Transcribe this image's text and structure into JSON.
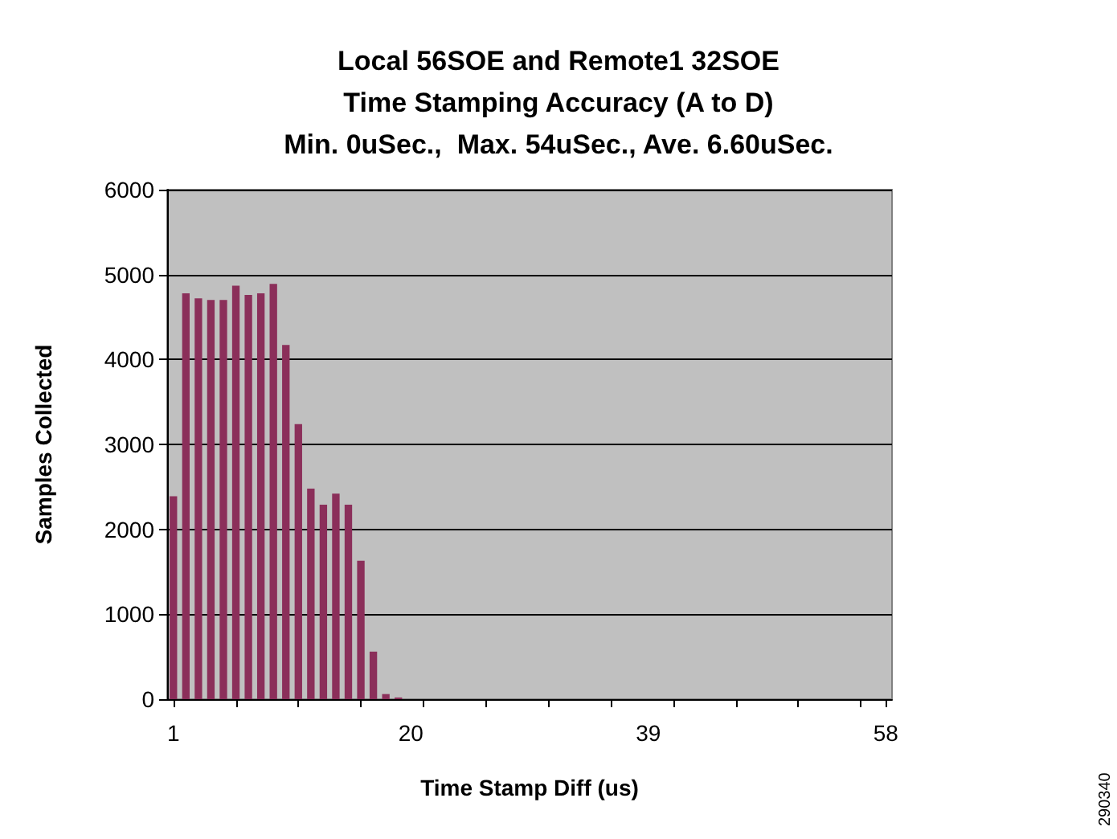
{
  "chart_data": {
    "type": "bar",
    "title": "Local 56SOE and Remote1 32SOE\nTime Stamping Accuracy (A to D)\nMin. 0uSec.,  Max. 54uSec., Ave. 6.60uSec.",
    "xlabel": "Time Stamp Diff (us)",
    "ylabel": "Samples Collected",
    "categories": [
      "1",
      null,
      null,
      null,
      null,
      null,
      null,
      null,
      null,
      null,
      null,
      null,
      null,
      null,
      null,
      null,
      null,
      null,
      null,
      "20",
      null,
      null,
      null,
      null,
      null,
      null,
      null,
      null,
      null,
      null,
      null,
      null,
      null,
      null,
      null,
      null,
      null,
      null,
      "39",
      null,
      null,
      null,
      null,
      null,
      null,
      null,
      null,
      null,
      null,
      null,
      null,
      null,
      null,
      null,
      null,
      null,
      null,
      "58"
    ],
    "values": [
      2390,
      4780,
      4720,
      4700,
      4700,
      4870,
      4760,
      4780,
      4890,
      4170,
      3240,
      2480,
      2290,
      2420,
      2290,
      1630,
      560,
      60,
      20,
      0,
      0,
      0,
      0,
      0,
      0,
      0,
      0,
      0,
      0,
      0,
      0,
      0,
      0,
      0,
      0,
      0,
      0,
      0,
      0,
      0,
      0,
      0,
      0,
      0,
      0,
      0,
      0,
      0,
      0,
      0,
      0,
      0,
      0,
      0,
      0,
      0,
      0,
      0
    ],
    "color": "#8b2f5a",
    "ylim": [
      0,
      6000
    ],
    "yticks": [
      0,
      1000,
      2000,
      3000,
      4000,
      5000,
      6000
    ],
    "grid": "y",
    "annotations": [
      "290340"
    ]
  }
}
